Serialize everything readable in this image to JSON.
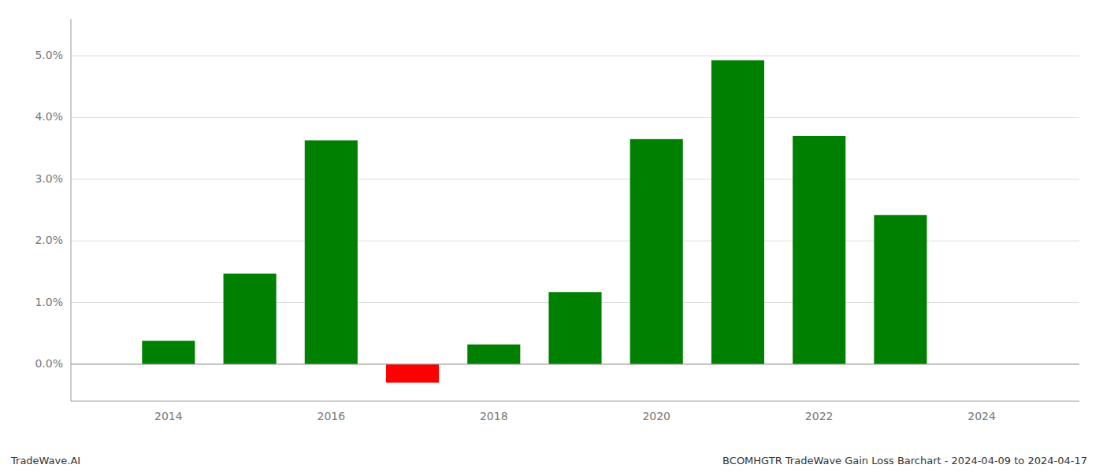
{
  "chart_data": {
    "type": "bar",
    "title": "BCOMHGTR TradeWave Gain Loss Barchart - 2024-04-09 to 2024-04-17",
    "annotations": [
      "TradeWave.AI"
    ],
    "x": [
      2014,
      2015,
      2016,
      2017,
      2018,
      2019,
      2020,
      2021,
      2022,
      2023
    ],
    "values": [
      0.0038,
      0.0147,
      0.0363,
      -0.003,
      0.0032,
      0.0117,
      0.0365,
      0.0493,
      0.037,
      0.0242
    ],
    "colors": [
      "#008000",
      "#008000",
      "#008000",
      "#ff0000",
      "#008000",
      "#008000",
      "#008000",
      "#008000",
      "#008000",
      "#008000"
    ],
    "xlim": [
      2012.8,
      2025.2
    ],
    "xticks": [
      2014,
      2016,
      2018,
      2020,
      2022,
      2024
    ],
    "ylim": [
      -0.006,
      0.056
    ],
    "yticks": [
      {
        "value": 0.0,
        "label": "0.0%"
      },
      {
        "value": 0.01,
        "label": "1.0%"
      },
      {
        "value": 0.02,
        "label": "2.0%"
      },
      {
        "value": 0.03,
        "label": "3.0%"
      },
      {
        "value": 0.04,
        "label": "4.0%"
      },
      {
        "value": 0.05,
        "label": "5.0%"
      }
    ],
    "grid": true
  }
}
